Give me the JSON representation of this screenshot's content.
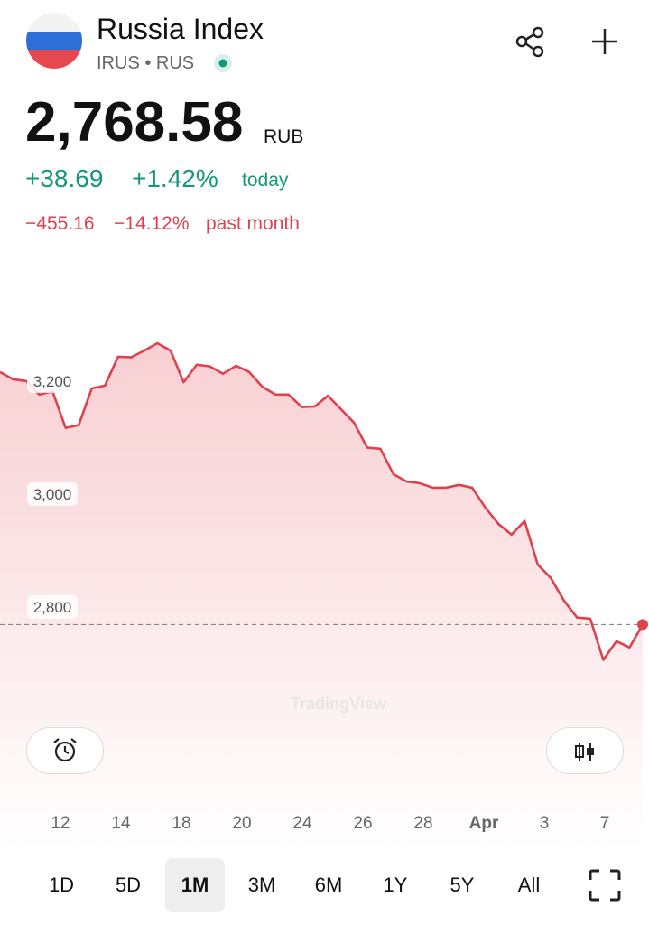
{
  "header": {
    "title": "Russia Index",
    "ticker": "IRUS • RUS",
    "price": "2,768.58",
    "currency": "RUB",
    "change_today": "+38.69",
    "change_today_pct": "+1.42%",
    "today_label": "today",
    "change_month": "−455.16",
    "change_month_pct": "−14.12%",
    "month_label": "past month"
  },
  "chart_data": {
    "type": "line",
    "color": "#e0414f",
    "area": true,
    "x_labels": [
      "12",
      "14",
      "18",
      "20",
      "24",
      "26",
      "28",
      "Apr",
      "3",
      "7"
    ],
    "values": [
      3216,
      3203,
      3200,
      3176,
      3182,
      3117,
      3122,
      3187,
      3192,
      3243,
      3242,
      3254,
      3267,
      3254,
      3198,
      3229,
      3226,
      3213,
      3227,
      3216,
      3190,
      3176,
      3176,
      3154,
      3155,
      3174,
      3150,
      3126,
      3082,
      3080,
      3035,
      3022,
      3019,
      3011,
      3011,
      3016,
      3011,
      2976,
      2947,
      2928,
      2952,
      2875,
      2851,
      2811,
      2781,
      2779,
      2706,
      2739,
      2728,
      2768.58
    ],
    "ylim": [
      2470,
      3395
    ],
    "yticks": [
      {
        "value": 2800,
        "label": "2,800"
      },
      {
        "value": 3000,
        "label": "3,000"
      },
      {
        "value": 3200,
        "label": "3,200"
      }
    ],
    "price_line": 2768.58,
    "watermark": "TradingView"
  },
  "ranges": [
    "1D",
    "5D",
    "1M",
    "3M",
    "6M",
    "1Y",
    "5Y",
    "All"
  ],
  "selected_range": "1M"
}
